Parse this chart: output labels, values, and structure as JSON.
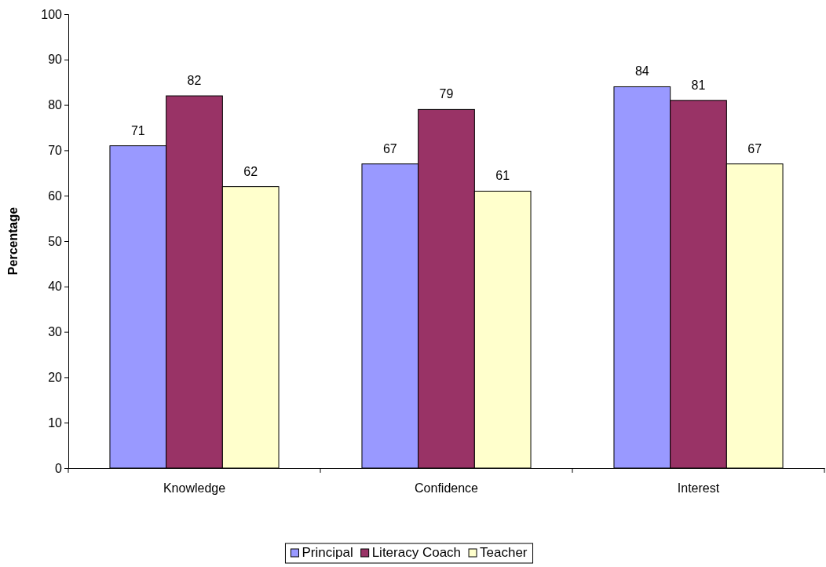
{
  "chart_data": {
    "type": "bar",
    "ylabel": "Percentage",
    "categories": [
      "Knowledge",
      "Confidence",
      "Interest"
    ],
    "series": [
      {
        "name": "Principal",
        "color": "#9999ff",
        "values": [
          71,
          67,
          84
        ]
      },
      {
        "name": "Literacy Coach",
        "color": "#993366",
        "values": [
          82,
          79,
          81
        ]
      },
      {
        "name": "Teacher",
        "color": "#ffffcc",
        "values": [
          62,
          61,
          67
        ]
      }
    ],
    "ylim": [
      0,
      100
    ],
    "yticks": [
      0,
      10,
      20,
      30,
      40,
      50,
      60,
      70,
      80,
      90,
      100
    ],
    "data_labels": true,
    "legend": "bottom",
    "grid": false
  }
}
